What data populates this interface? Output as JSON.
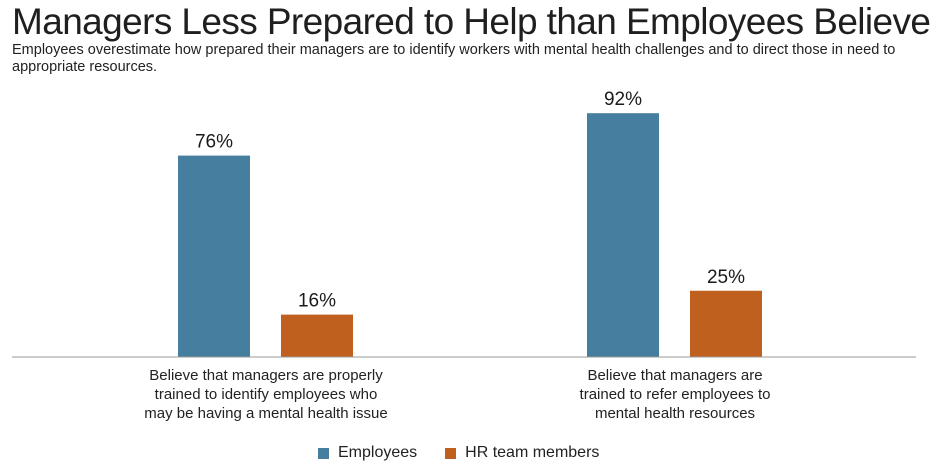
{
  "header": {
    "title": "Managers Less Prepared to Help than Employees Believe",
    "subtitle": "Employees overestimate how prepared their managers are to identify workers with mental health challenges and to direct those in need to appropriate resources."
  },
  "colors": {
    "employees": "#467e9f",
    "hr": "#c0601e",
    "axis": "#9a9a9a"
  },
  "chart_data": {
    "type": "bar",
    "title": "Managers Less Prepared to Help than Employees Believe",
    "categories": [
      [
        "Believe that managers are properly",
        "trained to identify employees who",
        "may be having a mental health issue"
      ],
      [
        "Believe that managers are",
        "trained to refer employees to",
        "mental health resources"
      ]
    ],
    "series": [
      {
        "name": "Employees",
        "values": [
          76,
          92
        ],
        "labels": [
          "76%",
          "92%"
        ]
      },
      {
        "name": "HR team members",
        "values": [
          16,
          25
        ],
        "labels": [
          "16%",
          "25%"
        ]
      }
    ],
    "ylim": [
      0,
      100
    ],
    "xlabel": "",
    "ylabel": "",
    "grid": false,
    "legend_position": "bottom-center"
  }
}
